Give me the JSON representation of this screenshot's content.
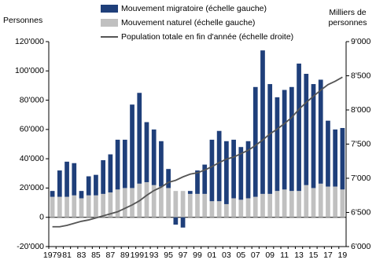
{
  "chart_data": {
    "type": "bar-line",
    "y_label": "Personnes",
    "y2_label_lines": [
      "Milliers de",
      "personnes"
    ],
    "categories": [
      "1979",
      null,
      "81",
      null,
      "83",
      null,
      "85",
      null,
      "87",
      null,
      "89",
      null,
      "1991",
      null,
      "93",
      null,
      "95",
      null,
      "97",
      null,
      "99",
      null,
      "01",
      null,
      "03",
      null,
      "05",
      null,
      "07",
      null,
      "09",
      null,
      "11",
      null,
      "13",
      null,
      "15",
      null,
      "17",
      null,
      "19"
    ],
    "series": [
      {
        "name": "Mouvement migratoire (échelle gauche)",
        "color": "#1f3f7a",
        "kind": "bar",
        "values": [
          4000,
          18000,
          24000,
          22000,
          5000,
          13000,
          14000,
          23000,
          26000,
          34000,
          33000,
          57000,
          62000,
          41000,
          38000,
          31000,
          13000,
          -5000,
          -7000,
          2000,
          16000,
          20000,
          42000,
          48000,
          43000,
          40000,
          36000,
          39000,
          75000,
          98000,
          75000,
          64000,
          68000,
          71000,
          87000,
          76000,
          71000,
          71000,
          45000,
          39000,
          42000
        ]
      },
      {
        "name": "Mouvement naturel (échelle gauche)",
        "color": "#c0c0c0",
        "kind": "bar",
        "values": [
          14000,
          14000,
          14000,
          15000,
          13000,
          15000,
          15000,
          16000,
          17000,
          19000,
          20000,
          20000,
          23000,
          24000,
          22000,
          21000,
          20000,
          18000,
          18000,
          16000,
          16000,
          16000,
          11000,
          11000,
          9000,
          13000,
          12000,
          13000,
          14000,
          16000,
          16000,
          18000,
          19000,
          18000,
          18000,
          22000,
          20000,
          23000,
          21000,
          21000,
          19000
        ]
      },
      {
        "name": "Population totale en fin d'année (échelle droite)",
        "color": "#555555",
        "kind": "line",
        "axis": "y2",
        "values": [
          6290,
          6290,
          6310,
          6340,
          6370,
          6390,
          6420,
          6450,
          6480,
          6510,
          6560,
          6610,
          6670,
          6750,
          6820,
          6870,
          6940,
          6970,
          7020,
          7060,
          7080,
          7120,
          7170,
          7230,
          7280,
          7310,
          7360,
          7410,
          7480,
          7560,
          7650,
          7720,
          7800,
          7890,
          8010,
          8110,
          8200,
          8290,
          8370,
          8420,
          8480
        ]
      }
    ],
    "ylim": [
      -20000,
      120000
    ],
    "yticks": [
      {
        "value": -20000,
        "label": "-20'000"
      },
      0,
      {
        "value": 20000,
        "label": "20'000"
      },
      {
        "value": 40000,
        "label": "40'000"
      },
      {
        "value": 60000,
        "label": "60'000"
      },
      {
        "value": 80000,
        "label": "80'000"
      },
      {
        "value": 100000,
        "label": "100'000"
      },
      {
        "value": 120000,
        "label": "120'000"
      }
    ],
    "y2lim": [
      6000,
      9000
    ],
    "y2ticks": [
      {
        "value": 6000,
        "label": "6'000"
      },
      {
        "value": 6500,
        "label": "6'500"
      },
      {
        "value": 7000,
        "label": "7'000"
      },
      {
        "value": 7500,
        "label": "7'500"
      },
      {
        "value": 8000,
        "label": "8'000"
      },
      {
        "value": 8500,
        "label": "8'500"
      },
      {
        "value": 9000,
        "label": "9'000"
      }
    ]
  }
}
